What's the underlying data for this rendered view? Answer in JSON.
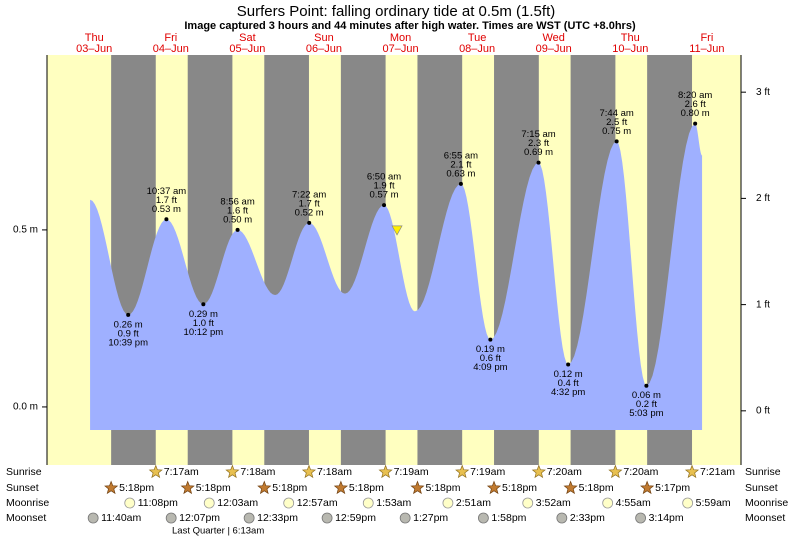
{
  "chart_data": {
    "type": "area",
    "title": "Surfers Point: falling  ordinary tide at 0.5m (1.5ft)",
    "subtitle": "Image captured 3 hours and 44 minutes after high water. Times are WST (UTC +8.0hrs)",
    "weekdays": [
      "Thu",
      "Fri",
      "Sat",
      "Sun",
      "Mon",
      "Tue",
      "Wed",
      "Thu",
      "Fri"
    ],
    "dates": [
      "03–Jun",
      "04–Jun",
      "05–Jun",
      "06–Jun",
      "07–Jun",
      "08–Jun",
      "09–Jun",
      "10–Jun",
      "11–Jun"
    ],
    "xlim": [
      -2.8,
      214.7
    ],
    "ylim": [
      -0.164,
      0.994
    ],
    "yticks": [
      {
        "value": 0,
        "label": "0.0 m"
      },
      {
        "value": 0.5,
        "label": "0.5 m"
      }
    ],
    "y2lim": [
      -0.51,
      3.35
    ],
    "y2ticks": [
      {
        "value": 0,
        "label": "0 ft"
      },
      {
        "value": 1,
        "label": "1 ft"
      },
      {
        "value": 2,
        "label": "2 ft"
      },
      {
        "value": 3,
        "label": "3 ft"
      }
    ],
    "day_color": "#ffffc0",
    "night_color": "#888888",
    "series": [
      {
        "name": "Tide",
        "color": "#9fb0ff",
        "x": [
          10.7,
          22.65,
          34.62,
          46.2,
          56.93,
          68.7,
          79.37,
          90.6,
          102.83,
          112.5,
          126.92,
          136.15,
          151.25,
          160.53,
          175.73,
          185.05,
          200.33,
          202.5
        ],
        "values": [
          0.585,
          0.26,
          0.53,
          0.29,
          0.5,
          0.316,
          0.52,
          0.32,
          0.57,
          0.27,
          0.63,
          0.19,
          0.69,
          0.12,
          0.75,
          0.06,
          0.8,
          0.71
        ],
        "value_labels": [
          null,
          "0.26 m",
          "0.53 m",
          "0.29 m",
          "0.50 m",
          null,
          "0.52 m",
          null,
          "0.57 m",
          null,
          "0.63 m",
          "0.19 m",
          "0.69 m",
          "0.12 m",
          "0.75 m",
          "0.06 m",
          "0.80 m",
          null
        ],
        "ft_labels": [
          null,
          "0.9 ft",
          "1.7 ft",
          "1.0 ft",
          "1.6 ft",
          null,
          "1.7 ft",
          null,
          "1.9 ft",
          null,
          "2.1 ft",
          "0.6 ft",
          "2.3 ft",
          "0.4 ft",
          "2.5 ft",
          "0.2 ft",
          "2.6 ft",
          null
        ],
        "time_labels": [
          null,
          "10:39 pm",
          "10:37 am",
          "10:12 pm",
          "8:56 am",
          null,
          "7:22 am",
          null,
          "6:50 am",
          null,
          "6:55 am",
          "4:09 pm",
          "7:15 am",
          "4:32 pm",
          "7:44 am",
          "5:03 pm",
          "8:20 am",
          null
        ]
      }
    ],
    "now": {
      "x": 106.9,
      "value": 0.5,
      "color": "#ffee00"
    },
    "rows": [
      {
        "name": "Sunrise",
        "times": [
          null,
          "7:17am",
          "7:18am",
          "7:18am",
          "7:19am",
          "7:19am",
          "7:20am",
          "7:20am",
          "7:21am"
        ]
      },
      {
        "name": "Sunset",
        "times": [
          "5:18pm",
          "5:18pm",
          "5:18pm",
          "5:18pm",
          "5:18pm",
          "5:18pm",
          "5:18pm",
          "5:17pm",
          null
        ]
      },
      {
        "name": "Moonrise",
        "times": [
          "11:08pm",
          null,
          "12:03am",
          "12:57am",
          "1:53am",
          "2:51am",
          "3:52am",
          "4:55am",
          "5:59am"
        ]
      },
      {
        "name": "Moonset",
        "times": [
          "11:40am",
          "12:07pm",
          "12:33pm",
          "12:59pm",
          "1:27pm",
          "1:58pm",
          "2:33pm",
          "3:14pm",
          null
        ]
      }
    ],
    "moon_phase": "Last Quarter | 6:13am"
  }
}
